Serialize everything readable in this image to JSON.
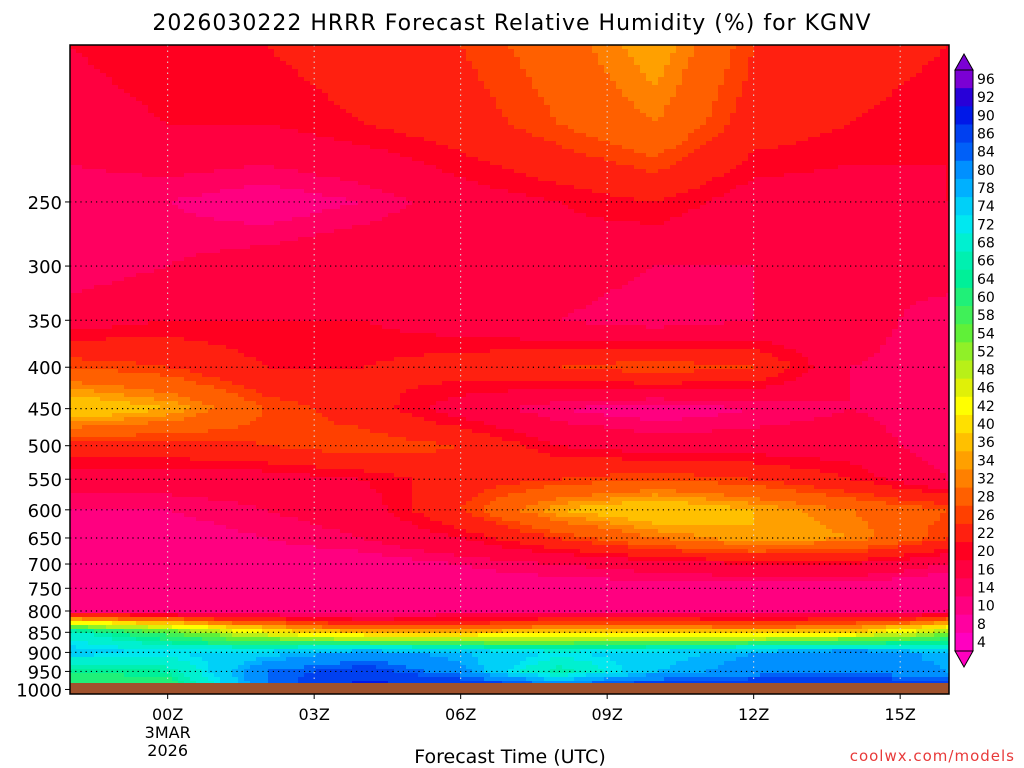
{
  "chart_data": {
    "type": "heatmap",
    "title": "2026030222 HRRR Forecast Relative Humidity (%) for KGNV",
    "xlabel": "Forecast Time (UTC)",
    "ylabel": "",
    "watermark": "coolwx.com/models",
    "x_ticks": [
      {
        "hour": 0,
        "label": "00Z",
        "sub": [
          "3MAR",
          "2026"
        ]
      },
      {
        "hour": 3,
        "label": "03Z"
      },
      {
        "hour": 6,
        "label": "06Z"
      },
      {
        "hour": 9,
        "label": "09Z"
      },
      {
        "hour": 12,
        "label": "12Z"
      },
      {
        "hour": 15,
        "label": "15Z"
      }
    ],
    "xlim": [
      -2,
      16
    ],
    "y_scale": "log",
    "ylim_hPa": [
      1013,
      160
    ],
    "y_ticks": [
      250,
      300,
      350,
      400,
      450,
      500,
      550,
      600,
      650,
      700,
      750,
      800,
      850,
      900,
      950,
      1000
    ],
    "grid": true,
    "colorbar": {
      "labels": [
        "96",
        "92",
        "90",
        "86",
        "84",
        "80",
        "78",
        "74",
        "72",
        "68",
        "66",
        "64",
        "60",
        "58",
        "54",
        "52",
        "48",
        "46",
        "42",
        "40",
        "36",
        "34",
        "32",
        "28",
        "26",
        "22",
        "20",
        "16",
        "14",
        "10",
        "8",
        "4"
      ],
      "colors": [
        "#7b00d4",
        "#2800d8",
        "#0018e8",
        "#0040f0",
        "#0060f8",
        "#0090ff",
        "#00b0ff",
        "#00d0f8",
        "#00e8f0",
        "#00f0d0",
        "#00f0b0",
        "#00f098",
        "#20f078",
        "#40f058",
        "#60f038",
        "#90f028",
        "#b8f018",
        "#e0f008",
        "#ffff00",
        "#ffe000",
        "#ffc000",
        "#ffa000",
        "#ff8000",
        "#ff6000",
        "#ff4000",
        "#ff2010",
        "#ff0020",
        "#ff0040",
        "#ff0060",
        "#ff0080",
        "#ff00a0",
        "#ff00c0"
      ],
      "extend": "both"
    },
    "values": {
      "time_hours": [
        -2,
        0,
        2,
        4,
        6,
        8,
        10,
        12,
        14,
        16
      ],
      "pressure_hPa": [
        160,
        200,
        250,
        300,
        350,
        400,
        450,
        500,
        550,
        600,
        650,
        700,
        750,
        800,
        850,
        900,
        950,
        1000
      ],
      "rh_percent": [
        [
          20,
          22,
          22,
          24,
          26,
          30,
          36,
          26,
          24,
          22
        ],
        [
          18,
          20,
          20,
          22,
          24,
          28,
          32,
          24,
          22,
          20
        ],
        [
          14,
          14,
          12,
          14,
          18,
          20,
          22,
          18,
          18,
          20
        ],
        [
          14,
          16,
          18,
          20,
          20,
          18,
          16,
          16,
          16,
          18
        ],
        [
          18,
          20,
          20,
          20,
          18,
          16,
          14,
          16,
          18,
          14
        ],
        [
          28,
          26,
          22,
          22,
          24,
          26,
          28,
          26,
          16,
          14
        ],
        [
          40,
          36,
          28,
          24,
          18,
          14,
          12,
          14,
          16,
          14
        ],
        [
          24,
          24,
          26,
          28,
          26,
          20,
          18,
          18,
          18,
          14
        ],
        [
          18,
          18,
          18,
          20,
          24,
          26,
          28,
          26,
          22,
          16
        ],
        [
          14,
          14,
          16,
          18,
          26,
          36,
          40,
          36,
          32,
          28
        ],
        [
          12,
          12,
          14,
          16,
          20,
          26,
          32,
          36,
          34,
          26
        ],
        [
          10,
          10,
          12,
          12,
          14,
          16,
          18,
          20,
          20,
          16
        ],
        [
          10,
          10,
          10,
          12,
          12,
          12,
          12,
          12,
          12,
          10
        ],
        [
          14,
          12,
          10,
          10,
          12,
          12,
          12,
          12,
          12,
          14
        ],
        [
          70,
          58,
          44,
          36,
          36,
          40,
          40,
          38,
          40,
          52
        ],
        [
          76,
          74,
          76,
          82,
          78,
          74,
          76,
          80,
          84,
          78
        ],
        [
          64,
          66,
          84,
          88,
          82,
          66,
          78,
          82,
          84,
          80
        ],
        [
          58,
          60,
          84,
          92,
          92,
          92,
          92,
          92,
          92,
          90
        ]
      ]
    }
  }
}
